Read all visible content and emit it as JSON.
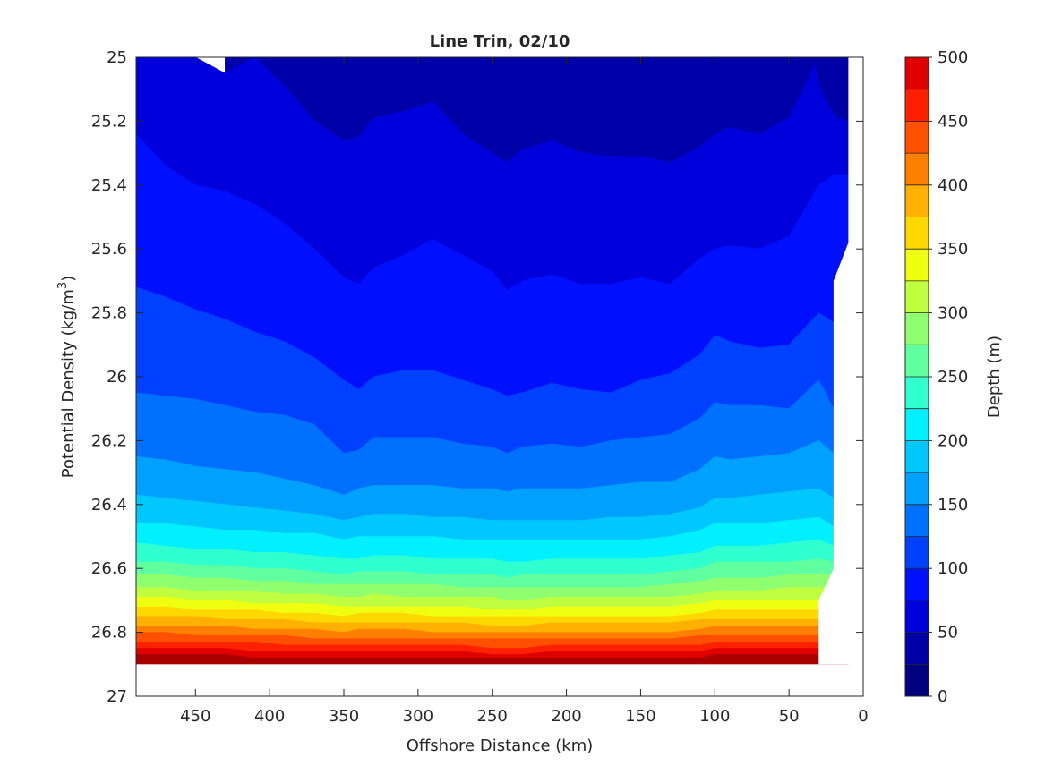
{
  "chart_data": {
    "type": "contour",
    "title": "Line Trin, 02/10",
    "xlabel": "Offshore Distance (km)",
    "ylabel": "Potential Density (kg/m³)",
    "xlim": [
      490,
      0
    ],
    "x_reversed": true,
    "xticks": [
      450,
      400,
      350,
      300,
      250,
      200,
      150,
      100,
      50,
      0
    ],
    "ylim": [
      25,
      27
    ],
    "y_reversed": true,
    "yticks": [
      25,
      25.2,
      25.4,
      25.6,
      25.8,
      26,
      26.2,
      26.4,
      26.6,
      26.8,
      27
    ],
    "colorbar": {
      "label": "Depth (m)",
      "range": [
        0,
        500
      ],
      "ticks": [
        0,
        50,
        100,
        150,
        200,
        250,
        300,
        350,
        400,
        450,
        500
      ],
      "levels": [
        0,
        25,
        50,
        75,
        100,
        125,
        150,
        175,
        200,
        225,
        250,
        275,
        300,
        325,
        350,
        375,
        400,
        425,
        450,
        475,
        500
      ],
      "colors": [
        "#000080",
        "#0000a8",
        "#0000dc",
        "#0010ff",
        "#0040ff",
        "#0070ff",
        "#00a0ff",
        "#00c8ff",
        "#00f0ff",
        "#30ffcf",
        "#60ff9f",
        "#90ff6f",
        "#c0ff3f",
        "#f0ff0f",
        "#ffd800",
        "#ffb000",
        "#ff8000",
        "#ff5000",
        "#ff2000",
        "#e00000",
        "#a80000"
      ],
      "colormap": "jet"
    },
    "contour_x": [
      490,
      470,
      450,
      430,
      410,
      390,
      370,
      350,
      340,
      330,
      310,
      290,
      270,
      250,
      240,
      230,
      210,
      190,
      170,
      150,
      130,
      110,
      100,
      90,
      70,
      50,
      30,
      20
    ],
    "isopycnal_depths": [
      {
        "depth": 25,
        "density": [
          null,
          null,
          null,
          25.05,
          25.0,
          25.09,
          25.2,
          25.26,
          25.25,
          25.19,
          25.17,
          25.14,
          25.24,
          25.3,
          25.33,
          25.29,
          25.26,
          25.3,
          25.31,
          25.31,
          25.33,
          25.28,
          25.24,
          25.22,
          25.24,
          25.19,
          25.0,
          25.0
        ]
      },
      {
        "depth": 50,
        "density": [
          25.24,
          25.34,
          25.4,
          25.42,
          25.46,
          25.52,
          25.6,
          25.69,
          25.71,
          25.66,
          25.62,
          25.57,
          25.62,
          25.67,
          25.73,
          25.7,
          25.68,
          25.71,
          25.71,
          25.69,
          25.71,
          25.63,
          25.6,
          25.59,
          25.6,
          25.56,
          25.4,
          25.37
        ]
      },
      {
        "depth": 75,
        "density": [
          25.72,
          25.75,
          25.79,
          25.82,
          25.86,
          25.89,
          25.94,
          26.01,
          26.04,
          26.0,
          25.98,
          25.98,
          26.01,
          26.04,
          26.06,
          26.05,
          26.02,
          26.04,
          26.05,
          26.01,
          25.99,
          25.93,
          25.87,
          25.89,
          25.91,
          25.9,
          25.8,
          25.83
        ]
      },
      {
        "depth": 100,
        "density": [
          26.05,
          26.06,
          26.07,
          26.09,
          26.11,
          26.12,
          26.15,
          26.24,
          26.23,
          26.19,
          26.19,
          26.19,
          26.21,
          26.22,
          26.24,
          26.22,
          26.21,
          26.22,
          26.2,
          26.19,
          26.18,
          26.13,
          26.08,
          26.09,
          26.09,
          26.1,
          26.01,
          26.1
        ]
      },
      {
        "depth": 125,
        "density": [
          26.25,
          26.26,
          26.28,
          26.29,
          26.3,
          26.32,
          26.34,
          26.37,
          26.35,
          26.34,
          26.34,
          26.34,
          26.35,
          26.35,
          26.36,
          26.35,
          26.35,
          26.35,
          26.34,
          26.33,
          26.33,
          26.29,
          26.25,
          26.26,
          26.25,
          26.24,
          26.2,
          26.24
        ]
      },
      {
        "depth": 150,
        "density": [
          26.37,
          26.38,
          26.39,
          26.4,
          26.41,
          26.42,
          26.43,
          26.45,
          26.44,
          26.43,
          26.43,
          26.44,
          26.44,
          26.45,
          26.45,
          26.45,
          26.45,
          26.45,
          26.44,
          26.44,
          26.43,
          26.41,
          26.38,
          26.38,
          26.37,
          26.36,
          26.35,
          26.38
        ]
      },
      {
        "depth": 175,
        "density": [
          26.46,
          26.46,
          26.47,
          26.48,
          26.48,
          26.49,
          26.49,
          26.51,
          26.5,
          26.5,
          26.5,
          26.5,
          26.51,
          26.51,
          26.51,
          26.51,
          26.51,
          26.51,
          26.51,
          26.51,
          26.5,
          26.48,
          26.46,
          26.46,
          26.46,
          26.45,
          26.44,
          26.47
        ]
      },
      {
        "depth": 200,
        "density": [
          26.52,
          26.53,
          26.54,
          26.54,
          26.55,
          26.55,
          26.56,
          26.57,
          26.57,
          26.56,
          26.56,
          26.57,
          26.57,
          26.57,
          26.58,
          26.58,
          26.57,
          26.57,
          26.57,
          26.57,
          26.56,
          26.55,
          26.53,
          26.53,
          26.53,
          26.52,
          26.51,
          26.53
        ]
      },
      {
        "depth": 225,
        "density": [
          26.58,
          26.58,
          26.59,
          26.59,
          26.6,
          26.6,
          26.61,
          26.62,
          26.61,
          26.61,
          26.61,
          26.62,
          26.62,
          26.62,
          26.63,
          26.62,
          26.62,
          26.62,
          26.62,
          26.62,
          26.61,
          26.6,
          26.58,
          26.58,
          26.58,
          26.58,
          26.57,
          26.58
        ]
      },
      {
        "depth": 250,
        "density": [
          26.62,
          26.62,
          26.63,
          26.63,
          26.64,
          26.64,
          26.65,
          26.65,
          26.65,
          26.65,
          26.65,
          26.65,
          26.66,
          26.66,
          26.66,
          26.66,
          26.66,
          26.66,
          26.66,
          26.66,
          26.65,
          26.64,
          26.63,
          26.63,
          26.63,
          26.62,
          26.62,
          26.62
        ]
      },
      {
        "depth": 275,
        "density": [
          26.66,
          26.66,
          26.67,
          26.67,
          26.67,
          26.68,
          26.68,
          26.69,
          26.69,
          26.68,
          26.69,
          26.69,
          26.69,
          26.69,
          26.7,
          26.7,
          26.69,
          26.69,
          26.69,
          26.69,
          26.69,
          26.68,
          26.67,
          26.67,
          26.67,
          26.66,
          26.66,
          26.66
        ]
      },
      {
        "depth": 300,
        "density": [
          26.69,
          26.69,
          26.7,
          26.7,
          26.71,
          26.71,
          26.71,
          26.72,
          26.72,
          26.72,
          26.72,
          26.72,
          26.72,
          26.73,
          26.73,
          26.73,
          26.72,
          26.72,
          26.72,
          26.72,
          26.72,
          26.71,
          26.7,
          26.7,
          26.7,
          26.7,
          26.7,
          26.7
        ]
      },
      {
        "depth": 325,
        "density": [
          26.72,
          26.72,
          26.73,
          26.73,
          26.73,
          26.74,
          26.74,
          26.75,
          26.74,
          26.74,
          26.74,
          26.75,
          26.75,
          26.75,
          26.75,
          26.75,
          26.75,
          26.75,
          26.75,
          26.75,
          26.75,
          26.74,
          26.73,
          26.73,
          26.73,
          26.73,
          26.73,
          26.73
        ]
      },
      {
        "depth": 350,
        "density": [
          26.75,
          26.75,
          26.75,
          26.76,
          26.76,
          26.76,
          26.77,
          26.77,
          26.77,
          26.77,
          26.77,
          26.77,
          26.77,
          26.78,
          26.78,
          26.78,
          26.77,
          26.77,
          26.77,
          26.77,
          26.77,
          26.76,
          26.76,
          26.76,
          26.76,
          26.76,
          26.76,
          26.76
        ]
      },
      {
        "depth": 375,
        "density": [
          26.78,
          26.78,
          26.78,
          26.78,
          26.79,
          26.79,
          26.79,
          26.8,
          26.79,
          26.79,
          26.79,
          26.8,
          26.8,
          26.8,
          26.8,
          26.8,
          26.8,
          26.8,
          26.8,
          26.8,
          26.8,
          26.79,
          26.78,
          26.78,
          26.78,
          26.78,
          26.78,
          26.78
        ]
      },
      {
        "depth": 400,
        "density": [
          26.8,
          26.8,
          26.81,
          26.81,
          26.81,
          26.81,
          26.82,
          26.82,
          26.82,
          26.82,
          26.82,
          26.82,
          26.82,
          26.82,
          26.82,
          26.82,
          26.82,
          26.82,
          26.82,
          26.82,
          26.82,
          26.81,
          26.81,
          26.81,
          26.81,
          26.81,
          26.81,
          26.81
        ]
      },
      {
        "depth": 425,
        "density": [
          26.83,
          26.83,
          26.83,
          26.83,
          26.83,
          26.84,
          26.84,
          26.84,
          26.84,
          26.84,
          26.84,
          26.84,
          26.84,
          26.85,
          26.85,
          26.85,
          26.84,
          26.84,
          26.84,
          26.84,
          26.84,
          26.84,
          26.83,
          26.83,
          26.83,
          26.83,
          26.83,
          26.83
        ]
      },
      {
        "depth": 450,
        "density": [
          26.85,
          26.85,
          26.85,
          26.85,
          26.86,
          26.86,
          26.86,
          26.86,
          26.86,
          26.86,
          26.86,
          26.86,
          26.86,
          26.87,
          26.87,
          26.87,
          26.86,
          26.86,
          26.86,
          26.86,
          26.86,
          26.86,
          26.85,
          26.85,
          26.85,
          26.85,
          26.85,
          26.85
        ]
      },
      {
        "depth": 475,
        "density": [
          26.87,
          26.87,
          26.87,
          26.87,
          26.88,
          26.88,
          26.88,
          26.88,
          26.88,
          26.88,
          26.88,
          26.88,
          26.88,
          26.88,
          26.88,
          26.88,
          26.88,
          26.88,
          26.88,
          26.88,
          26.88,
          26.88,
          26.87,
          26.87,
          26.87,
          26.87,
          26.87,
          26.87
        ]
      }
    ],
    "data_bottom_density": 26.9,
    "coastal_edge": [
      {
        "x": 10,
        "density": 25.0
      },
      {
        "x": 10,
        "density": 25.58
      },
      {
        "x": 20,
        "density": 25.7
      },
      {
        "x": 20,
        "density": 26.6
      },
      {
        "x": 30,
        "density": 26.7
      },
      {
        "x": 30,
        "density": 26.9
      }
    ]
  }
}
